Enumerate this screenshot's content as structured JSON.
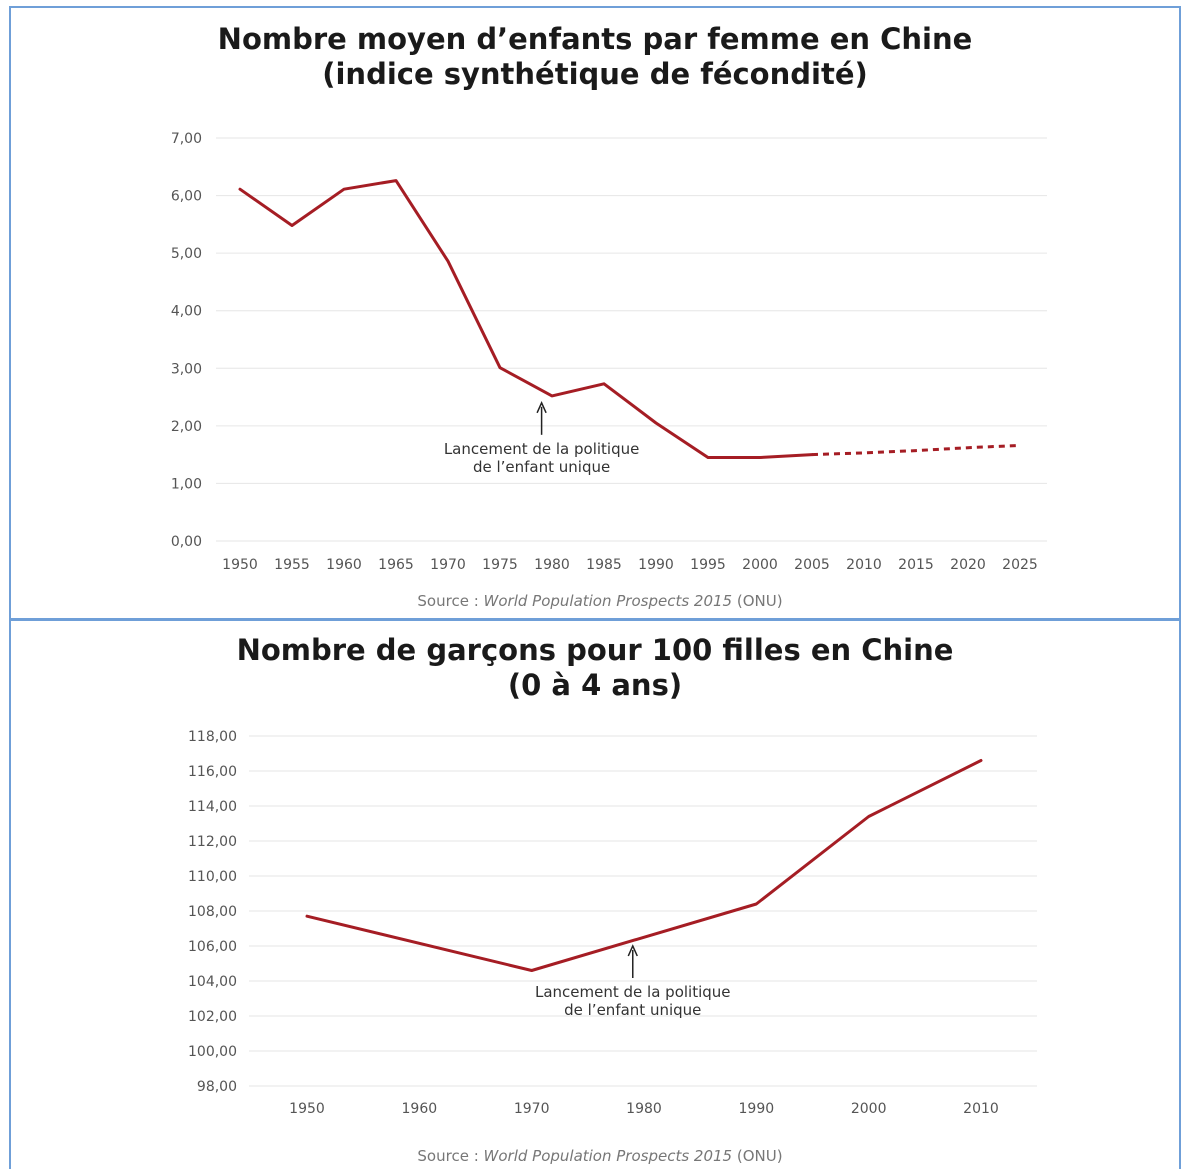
{
  "colors": {
    "line": "#a51d24",
    "grid": "#e6e6e6",
    "border": "#6f9fd8"
  },
  "chart_data": [
    {
      "type": "line",
      "title": "Nombre moyen d’enfants par femme en Chine\n(indice synthétique de fécondité)",
      "title_lines": [
        "Nombre moyen d’enfants par femme en Chine",
        "(indice synthétique de fécondité)"
      ],
      "xlabel": "",
      "ylabel": "",
      "ylim": [
        0,
        7
      ],
      "y_ticks": [
        "0,00",
        "1,00",
        "2,00",
        "3,00",
        "4,00",
        "5,00",
        "6,00",
        "7,00"
      ],
      "y_tick_values": [
        0,
        1,
        2,
        3,
        4,
        5,
        6,
        7
      ],
      "x_ticks": [
        "1950",
        "1955",
        "1960",
        "1965",
        "1970",
        "1975",
        "1980",
        "1985",
        "1990",
        "1995",
        "2000",
        "2005",
        "2010",
        "2015",
        "2020",
        "2025"
      ],
      "x_range": [
        1950,
        2025
      ],
      "grid": true,
      "series": [
        {
          "x": [
            1950,
            1955,
            1960,
            1965,
            1970,
            1975,
            1980,
            1985,
            1990,
            1995,
            2000,
            2005
          ],
          "values": [
            6.11,
            5.48,
            6.11,
            6.26,
            4.86,
            3.01,
            2.52,
            2.73,
            2.05,
            1.45,
            1.45,
            1.5
          ],
          "style": "solid"
        },
        {
          "x": [
            2005,
            2010,
            2015,
            2020,
            2025
          ],
          "values": [
            1.5,
            1.53,
            1.57,
            1.62,
            1.66
          ],
          "style": "dashed"
        }
      ],
      "annotation": {
        "lines": [
          "Lancement de la politique",
          "de l’enfant unique"
        ],
        "x": 1979,
        "y": 2.4
      },
      "source": {
        "prefix": "Source : ",
        "italic": "World Population Prospects 2015",
        "suffix": " (ONU)"
      }
    },
    {
      "type": "line",
      "title": "Nombre de garçons pour 100 filles en Chine\n(0 à 4 ans)",
      "title_lines": [
        "Nombre de garçons pour 100 filles en Chine",
        "(0 à 4 ans)"
      ],
      "xlabel": "",
      "ylabel": "",
      "ylim": [
        98,
        118
      ],
      "y_ticks": [
        "98,00",
        "100,00",
        "102,00",
        "104,00",
        "106,00",
        "108,00",
        "110,00",
        "112,00",
        "114,00",
        "116,00",
        "118,00"
      ],
      "y_tick_values": [
        98,
        100,
        102,
        104,
        106,
        108,
        110,
        112,
        114,
        116,
        118
      ],
      "x_ticks": [
        "1950",
        "1960",
        "1970",
        "1980",
        "1990",
        "2000",
        "2010"
      ],
      "x_range": [
        1950,
        2010
      ],
      "grid": true,
      "series": [
        {
          "x": [
            1950,
            1970,
            1990,
            2000,
            2010
          ],
          "values": [
            107.7,
            104.6,
            108.4,
            113.4,
            116.6
          ],
          "style": "solid"
        }
      ],
      "annotation": {
        "lines": [
          "Lancement de la politique",
          "de l’enfant unique"
        ],
        "x": 1979,
        "y": 106.0
      },
      "source": {
        "prefix": "Source : ",
        "italic": "World Population Prospects 2015",
        "suffix": " (ONU)"
      }
    }
  ]
}
